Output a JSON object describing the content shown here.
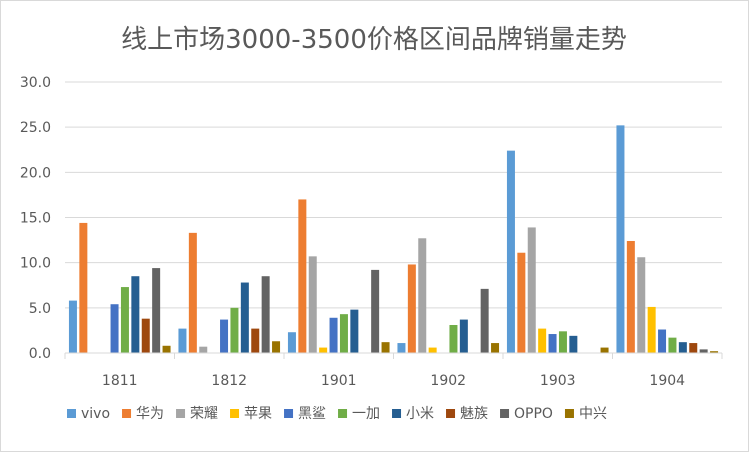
{
  "chart_data": {
    "type": "bar",
    "title": "线上市场3000-3500价格区间品牌销量走势",
    "xlabel": "",
    "ylabel": "",
    "ylim": [
      0,
      30
    ],
    "yticks": [
      "0.0",
      "5.0",
      "10.0",
      "15.0",
      "20.0",
      "25.0",
      "30.0"
    ],
    "grid": true,
    "legend_position": "bottom",
    "categories": [
      "1811",
      "1812",
      "1901",
      "1902",
      "1903",
      "1904"
    ],
    "series": [
      {
        "name": "vivo",
        "color": "#5B9BD5",
        "values": [
          5.8,
          2.7,
          2.3,
          1.1,
          22.4,
          25.2
        ]
      },
      {
        "name": "华为",
        "color": "#ED7D31",
        "values": [
          14.4,
          13.3,
          17.0,
          9.8,
          11.1,
          12.4
        ]
      },
      {
        "name": "荣耀",
        "color": "#A5A5A5",
        "values": [
          0,
          0.7,
          10.7,
          12.7,
          13.9,
          10.6
        ]
      },
      {
        "name": "苹果",
        "color": "#FFC000",
        "values": [
          0,
          0,
          0.6,
          0.6,
          2.7,
          5.1
        ]
      },
      {
        "name": "黑鲨",
        "color": "#4472C4",
        "values": [
          5.4,
          3.7,
          3.9,
          0,
          2.1,
          2.6
        ]
      },
      {
        "name": "一加",
        "color": "#70AD47",
        "values": [
          7.3,
          5.0,
          4.3,
          3.1,
          2.4,
          1.7
        ]
      },
      {
        "name": "小米",
        "color": "#255E91",
        "values": [
          8.5,
          7.8,
          4.8,
          3.7,
          1.9,
          1.2
        ]
      },
      {
        "name": "魅族",
        "color": "#9E480E",
        "values": [
          3.8,
          2.7,
          0,
          0,
          0,
          1.1
        ]
      },
      {
        "name": "OPPO",
        "color": "#636363",
        "values": [
          9.4,
          8.5,
          9.2,
          7.1,
          0,
          0.4
        ]
      },
      {
        "name": "中兴",
        "color": "#997300",
        "values": [
          0.8,
          1.3,
          1.2,
          1.1,
          0.6,
          0.2
        ]
      }
    ]
  }
}
